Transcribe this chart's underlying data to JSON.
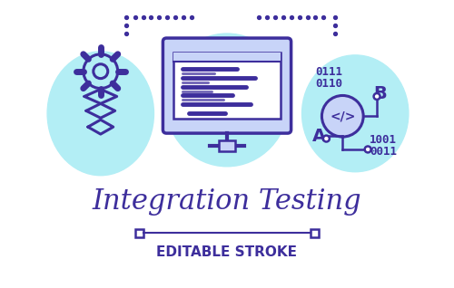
{
  "bg_color": "#ffffff",
  "icon_color": "#3d2e9c",
  "icon_color_light": "#5b4fcf",
  "circle_color": "#b3eef5",
  "title": "Integration Testing",
  "subtitle": "EDITABLE STROKE",
  "title_color": "#3d2e9c",
  "subtitle_color": "#3d2e9c",
  "title_fontsize": 22,
  "subtitle_fontsize": 11
}
